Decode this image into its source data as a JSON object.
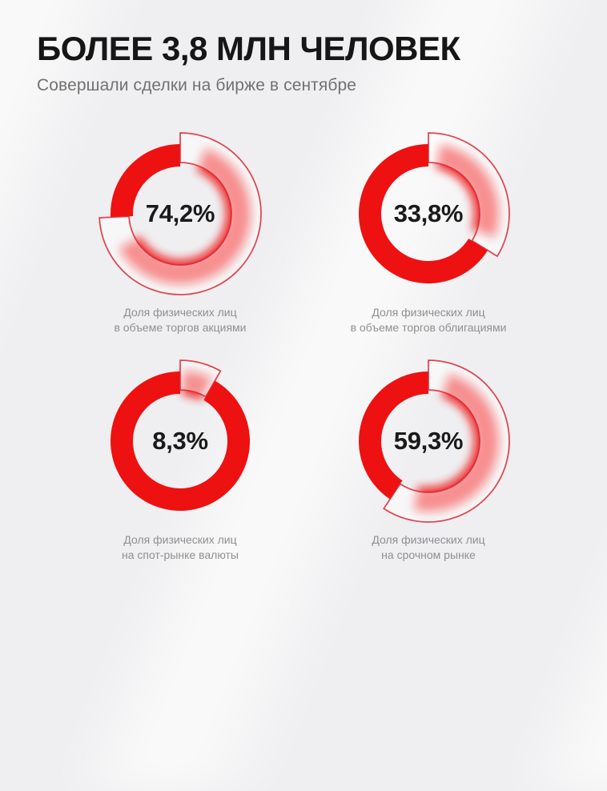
{
  "header": {
    "title": "БОЛЕЕ 3,8 МЛН ЧЕЛОВЕК",
    "subtitle": "Совершали сделки на бирже в сентябре"
  },
  "colors": {
    "accent_red": "#ee1111",
    "wedge_fill": "rgba(255,255,255,0.5)",
    "wedge_border": "rgba(222,35,48,0.85)",
    "background": "#efeff1",
    "title_text": "#161616",
    "subtitle_text": "#717171",
    "caption_text": "#8f8f8f",
    "percent_text": "#1a1a1a"
  },
  "chart_data": [
    {
      "type": "pie",
      "subtype": "donut",
      "value": 74.2,
      "remainder": 25.8,
      "unit": "%",
      "label": "74,2%",
      "start_angle_deg": 0,
      "direction": "clockwise",
      "caption": [
        "Доля физических лиц",
        "в объеме торгов акциями"
      ]
    },
    {
      "type": "pie",
      "subtype": "donut",
      "value": 33.8,
      "remainder": 66.2,
      "unit": "%",
      "label": "33,8%",
      "start_angle_deg": 0,
      "direction": "clockwise",
      "caption": [
        "Доля физических лиц",
        "в объеме торгов облигациями"
      ]
    },
    {
      "type": "pie",
      "subtype": "donut",
      "value": 8.3,
      "remainder": 91.7,
      "unit": "%",
      "label": "8,3%",
      "start_angle_deg": 0,
      "direction": "clockwise",
      "caption": [
        "Доля физических лиц",
        "на спот-рынке валюты"
      ]
    },
    {
      "type": "pie",
      "subtype": "donut",
      "value": 59.3,
      "remainder": 40.7,
      "unit": "%",
      "label": "59,3%",
      "start_angle_deg": 0,
      "direction": "clockwise",
      "caption": [
        "Доля физических лиц",
        "на срочном рынке"
      ]
    }
  ]
}
